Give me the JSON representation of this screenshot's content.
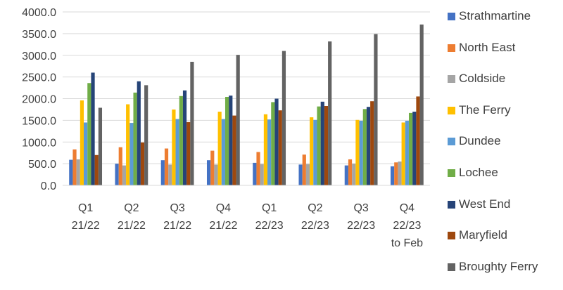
{
  "chart_data": {
    "type": "bar",
    "categories": [
      [
        "Q1",
        "21/22"
      ],
      [
        "Q2",
        "21/22"
      ],
      [
        "Q3",
        "21/22"
      ],
      [
        "Q4",
        "21/22"
      ],
      [
        "Q1",
        "22/23"
      ],
      [
        "Q2",
        "22/23"
      ],
      [
        "Q3",
        "22/23"
      ],
      [
        "Q4",
        "22/23",
        "to Feb"
      ]
    ],
    "ylim": [
      0,
      4000
    ],
    "yticks": [
      "0.0",
      "500.0",
      "1000.0",
      "1500.0",
      "2000.0",
      "2500.0",
      "3000.0",
      "3500.0",
      "4000.0"
    ],
    "grid": true,
    "legend_position": "right",
    "series": [
      {
        "name": "Strathmartine",
        "color": "#4472C4",
        "values": [
          590,
          500,
          580,
          580,
          520,
          480,
          460,
          440
        ]
      },
      {
        "name": "North East",
        "color": "#ED7D31",
        "values": [
          830,
          880,
          850,
          800,
          770,
          710,
          600,
          530
        ]
      },
      {
        "name": "Coldside",
        "color": "#A5A5A5",
        "values": [
          600,
          460,
          480,
          480,
          490,
          490,
          500,
          550
        ]
      },
      {
        "name": "The Ferry",
        "color": "#FFC000",
        "values": [
          1960,
          1870,
          1750,
          1700,
          1640,
          1570,
          1510,
          1450
        ]
      },
      {
        "name": "Dundee",
        "color": "#5B9BD5",
        "values": [
          1450,
          1440,
          1530,
          1530,
          1520,
          1510,
          1490,
          1490
        ]
      },
      {
        "name": "Lochee",
        "color": "#70AD47",
        "values": [
          2360,
          2140,
          2060,
          2040,
          1920,
          1820,
          1760,
          1670
        ]
      },
      {
        "name": "West End",
        "color": "#264478",
        "values": [
          2600,
          2400,
          2190,
          2070,
          2000,
          1930,
          1810,
          1700
        ]
      },
      {
        "name": "Maryfield",
        "color": "#9E480E",
        "values": [
          700,
          990,
          1460,
          1610,
          1730,
          1830,
          1940,
          2050
        ]
      },
      {
        "name": "Broughty Ferry",
        "color": "#636363",
        "values": [
          1790,
          2310,
          2850,
          3010,
          3100,
          3320,
          3490,
          3710
        ]
      }
    ]
  }
}
